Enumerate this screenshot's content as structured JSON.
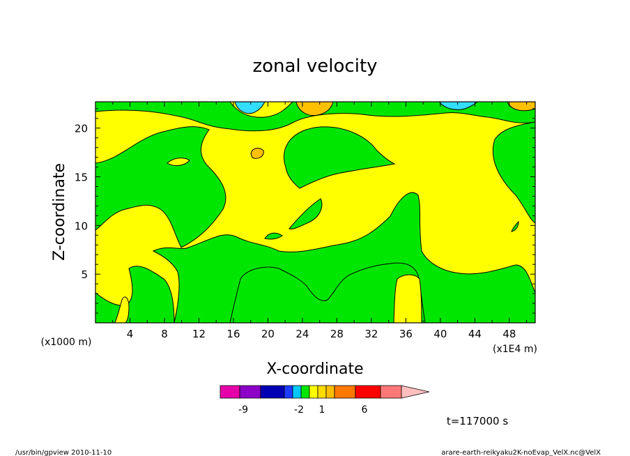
{
  "chart_data": {
    "type": "heatmap",
    "title": "zonal velocity",
    "xlabel": "X-coordinate",
    "ylabel": "Z-coordinate",
    "x_unit_left": "(x1000 m)",
    "x_unit_right": "(x1E4 m)",
    "xlim": [
      0,
      51
    ],
    "ylim": [
      0,
      22.7
    ],
    "x_ticks": [
      "4",
      "8",
      "12",
      "16",
      "20",
      "24",
      "28",
      "32",
      "36",
      "40",
      "44",
      "48"
    ],
    "y_ticks": [
      "5",
      "10",
      "15",
      "20"
    ],
    "dominant_level_colors": {
      "background": "#ffff00",
      "regions": "#00e600",
      "cool_core": "#33ddff",
      "warm_core": "#ffc000"
    },
    "colorbar": {
      "tick_labels": [
        "-9",
        "-2",
        "1",
        "6"
      ],
      "colors": [
        "#e600aa",
        "#8c00c8",
        "#0000b4",
        "#1e3cff",
        "#00c8ff",
        "#00e600",
        "#ffff00",
        "#ffdc00",
        "#ffbe00",
        "#ff7800",
        "#ff0000",
        "#ff7878",
        "#ffbebe"
      ]
    },
    "annotation_time": "t=117000 s"
  },
  "footer": {
    "left": "/usr/bin/gpview  2010-11-10",
    "right": "arare-earth-reikyaku2K-noEvap_VelX.nc@VelX"
  }
}
